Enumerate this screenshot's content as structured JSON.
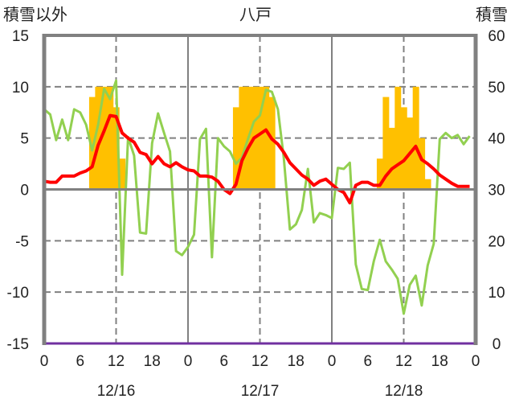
{
  "chart_data": {
    "type": "bar+line",
    "title": "八戸",
    "ylabel_left": "積雪以外",
    "ylabel_right": "積雪",
    "ylim_left": [
      -15,
      15
    ],
    "ylim_right": [
      0,
      60
    ],
    "yticks_left": [
      "15",
      "10",
      "5",
      "0",
      "-5",
      "-10",
      "-15"
    ],
    "yticks_right": [
      "60",
      "50",
      "40",
      "30",
      "20",
      "10",
      "0"
    ],
    "xtick_labels": [
      "0",
      "6",
      "12",
      "18",
      "0",
      "6",
      "12",
      "18",
      "0",
      "6",
      "12",
      "18",
      "0"
    ],
    "dates": [
      "12/16",
      "12/17",
      "12/18"
    ],
    "x_hours_range": [
      0,
      72
    ],
    "grid": "dashed at ±5, ±10 and every 12h noon; solid at day boundaries",
    "colors": {
      "snow_bars": "#FFC000",
      "red_line": "#FF0000",
      "green_line": "#92D050",
      "purple_line": "#7030A0",
      "axis": "#808080"
    },
    "snow_bars": {
      "axis": "right",
      "hours": [
        8,
        9,
        10,
        11,
        12,
        13,
        32,
        33,
        34,
        35,
        36,
        37,
        38,
        56,
        57,
        58,
        59,
        60,
        61,
        62,
        63,
        64
      ],
      "values": [
        48,
        50,
        50,
        50,
        46,
        36,
        46,
        50,
        50,
        50,
        50,
        50,
        48,
        36,
        48,
        42,
        50,
        46,
        44,
        50,
        40,
        32
      ]
    },
    "red_series": {
      "axis": "left",
      "values": [
        0.8,
        0.7,
        0.7,
        1.3,
        1.3,
        1.3,
        1.6,
        1.8,
        2.2,
        4.3,
        5.7,
        7.2,
        7.1,
        5.5,
        5.0,
        4.6,
        3.6,
        3.4,
        2.5,
        3.2,
        2.5,
        2.2,
        2.6,
        2.2,
        1.9,
        1.8,
        1.3,
        1.3,
        1.2,
        0.8,
        0.0,
        -0.4,
        0.5,
        2.8,
        4.0,
        5.0,
        5.4,
        5.8,
        4.9,
        4.4,
        3.6,
        2.6,
        2.0,
        1.4,
        1.0,
        0.4,
        0.8,
        1.0,
        0.5,
        0.0,
        -0.3,
        -1.3,
        0.4,
        0.7,
        0.7,
        0.4,
        0.4,
        1.3,
        2.0,
        2.4,
        2.8,
        3.5,
        4.2,
        2.9,
        2.5,
        2.0,
        1.4,
        1.0,
        0.6,
        0.3,
        0.3,
        0.3
      ]
    },
    "green_series": {
      "axis": "left",
      "values": [
        7.8,
        7.3,
        4.8,
        6.8,
        4.8,
        7.8,
        7.5,
        6.3,
        3.8,
        6.3,
        9.8,
        8.8,
        10.6,
        -8.3,
        5.1,
        3.3,
        -4.2,
        -4.3,
        4.5,
        7.4,
        5.5,
        3.7,
        -6.0,
        -6.4,
        -5.6,
        -4.4,
        4.9,
        5.9,
        -6.6,
        5.0,
        4.2,
        3.7,
        2.5,
        3.1,
        4.9,
        6.6,
        7.2,
        9.7,
        9.5,
        7.8,
        3.0,
        -3.9,
        -3.4,
        -2.0,
        2.0,
        -3.2,
        -2.3,
        -2.5,
        -2.8,
        2.1,
        2.0,
        2.6,
        -7.3,
        -9.7,
        -9.8,
        -7.0,
        -4.9,
        -7.0,
        -7.8,
        -8.7,
        -12.1,
        -9.3,
        -8.4,
        -11.3,
        -7.4,
        -5.3,
        4.9,
        5.5,
        5.0,
        5.3,
        4.4,
        5.2
      ]
    },
    "purple_series": {
      "axis": "right",
      "value": 0
    }
  }
}
